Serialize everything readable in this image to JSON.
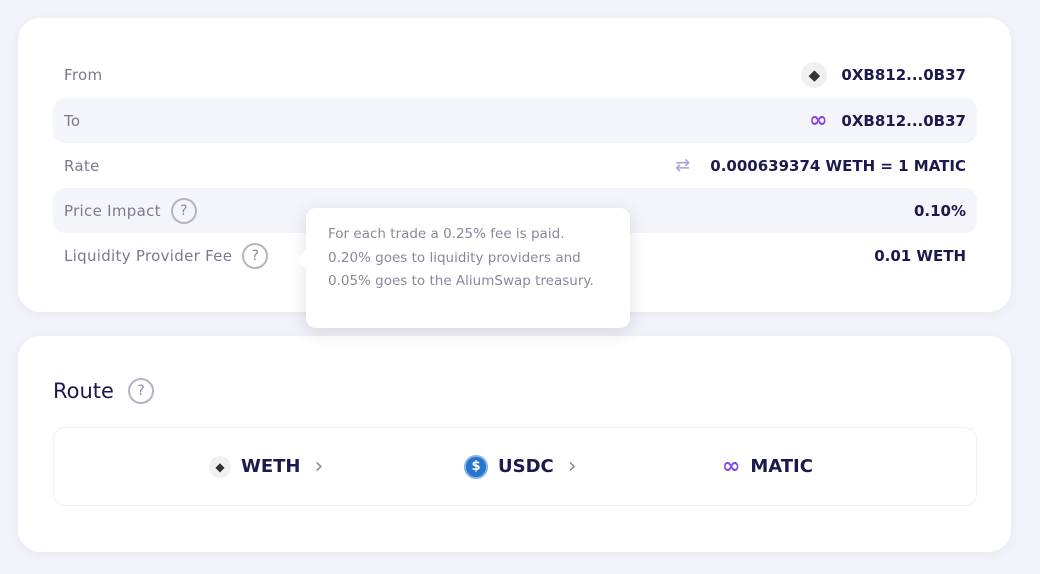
{
  "details": {
    "from": {
      "label": "From",
      "value": "0XB812...0B37",
      "icon": "eth-icon"
    },
    "to": {
      "label": "To",
      "value": "0XB812...0B37",
      "icon": "polygon-icon"
    },
    "rate": {
      "label": "Rate",
      "value": "0.000639374 WETH = 1 MATIC",
      "icon": "swap-arrows-icon"
    },
    "price_impact": {
      "label": "Price Impact",
      "value": "0.10%"
    },
    "lp_fee": {
      "label": "Liquidity Provider Fee",
      "value": "0.01 WETH"
    }
  },
  "tooltip": {
    "text": "For each trade a 0.25% fee is paid. 0.20% goes to liquidity providers and 0.05% goes to the AliumSwap treasury."
  },
  "route": {
    "title": "Route",
    "hops": [
      {
        "token": "WETH"
      },
      {
        "token": "USDC"
      },
      {
        "token": "MATIC"
      }
    ]
  },
  "colors": {
    "text": "#1c1a4d",
    "accent": "#8247e5",
    "usdc": "#2775ca"
  }
}
